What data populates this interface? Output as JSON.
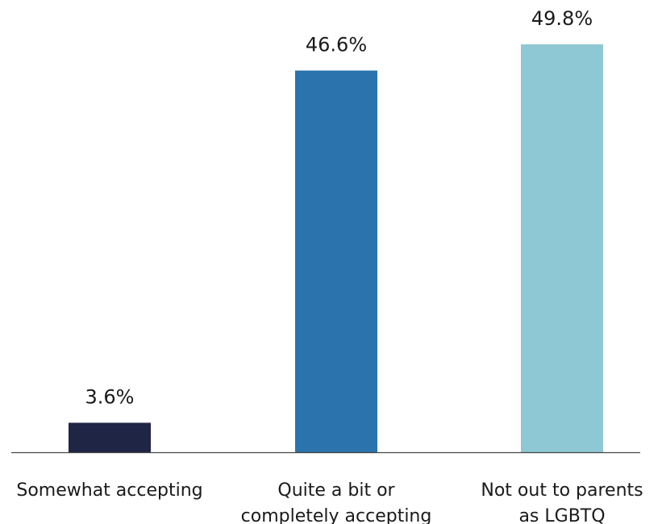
{
  "chart_data": {
    "type": "bar",
    "title": "",
    "xlabel": "",
    "ylabel": "",
    "ylim": [
      0,
      50
    ],
    "grid": false,
    "legend": "none",
    "categories": [
      [
        "Somewhat accepting"
      ],
      [
        "Quite a bit or",
        "completely accepting"
      ],
      [
        "Not out to parents",
        "as LGBTQ"
      ]
    ],
    "values": [
      3.6,
      46.6,
      49.8
    ],
    "value_labels": [
      "3.6%",
      "46.6%",
      "49.8%"
    ],
    "colors": [
      "#1f2545",
      "#2a73ad",
      "#8ec8d4"
    ],
    "axis_color": "#444444"
  }
}
